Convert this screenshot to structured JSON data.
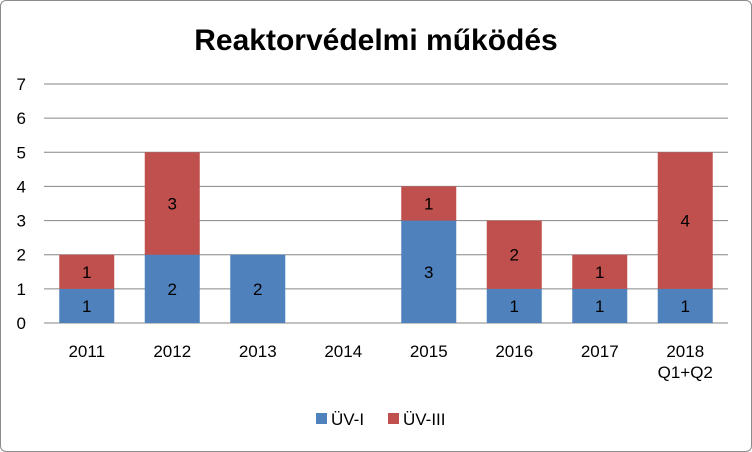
{
  "chart_data": {
    "type": "bar",
    "stacked": true,
    "title": "Reaktorvédelmi működés",
    "categories": [
      [
        "2011"
      ],
      [
        "2012"
      ],
      [
        "2013"
      ],
      [
        "2014"
      ],
      [
        "2015"
      ],
      [
        "2016"
      ],
      [
        "2017"
      ],
      [
        "2018",
        "Q1+Q2"
      ]
    ],
    "series": [
      {
        "name": "ÜV-I",
        "color": "#4F81BD",
        "values": [
          1,
          2,
          2,
          0,
          3,
          1,
          1,
          1
        ]
      },
      {
        "name": "ÜV-III",
        "color": "#C0504D",
        "values": [
          1,
          3,
          0,
          0,
          1,
          2,
          1,
          4
        ]
      }
    ],
    "ylim": [
      0,
      7
    ],
    "yticks": [
      0,
      1,
      2,
      3,
      4,
      5,
      6,
      7
    ],
    "grid": true,
    "legend_position": "bottom"
  }
}
